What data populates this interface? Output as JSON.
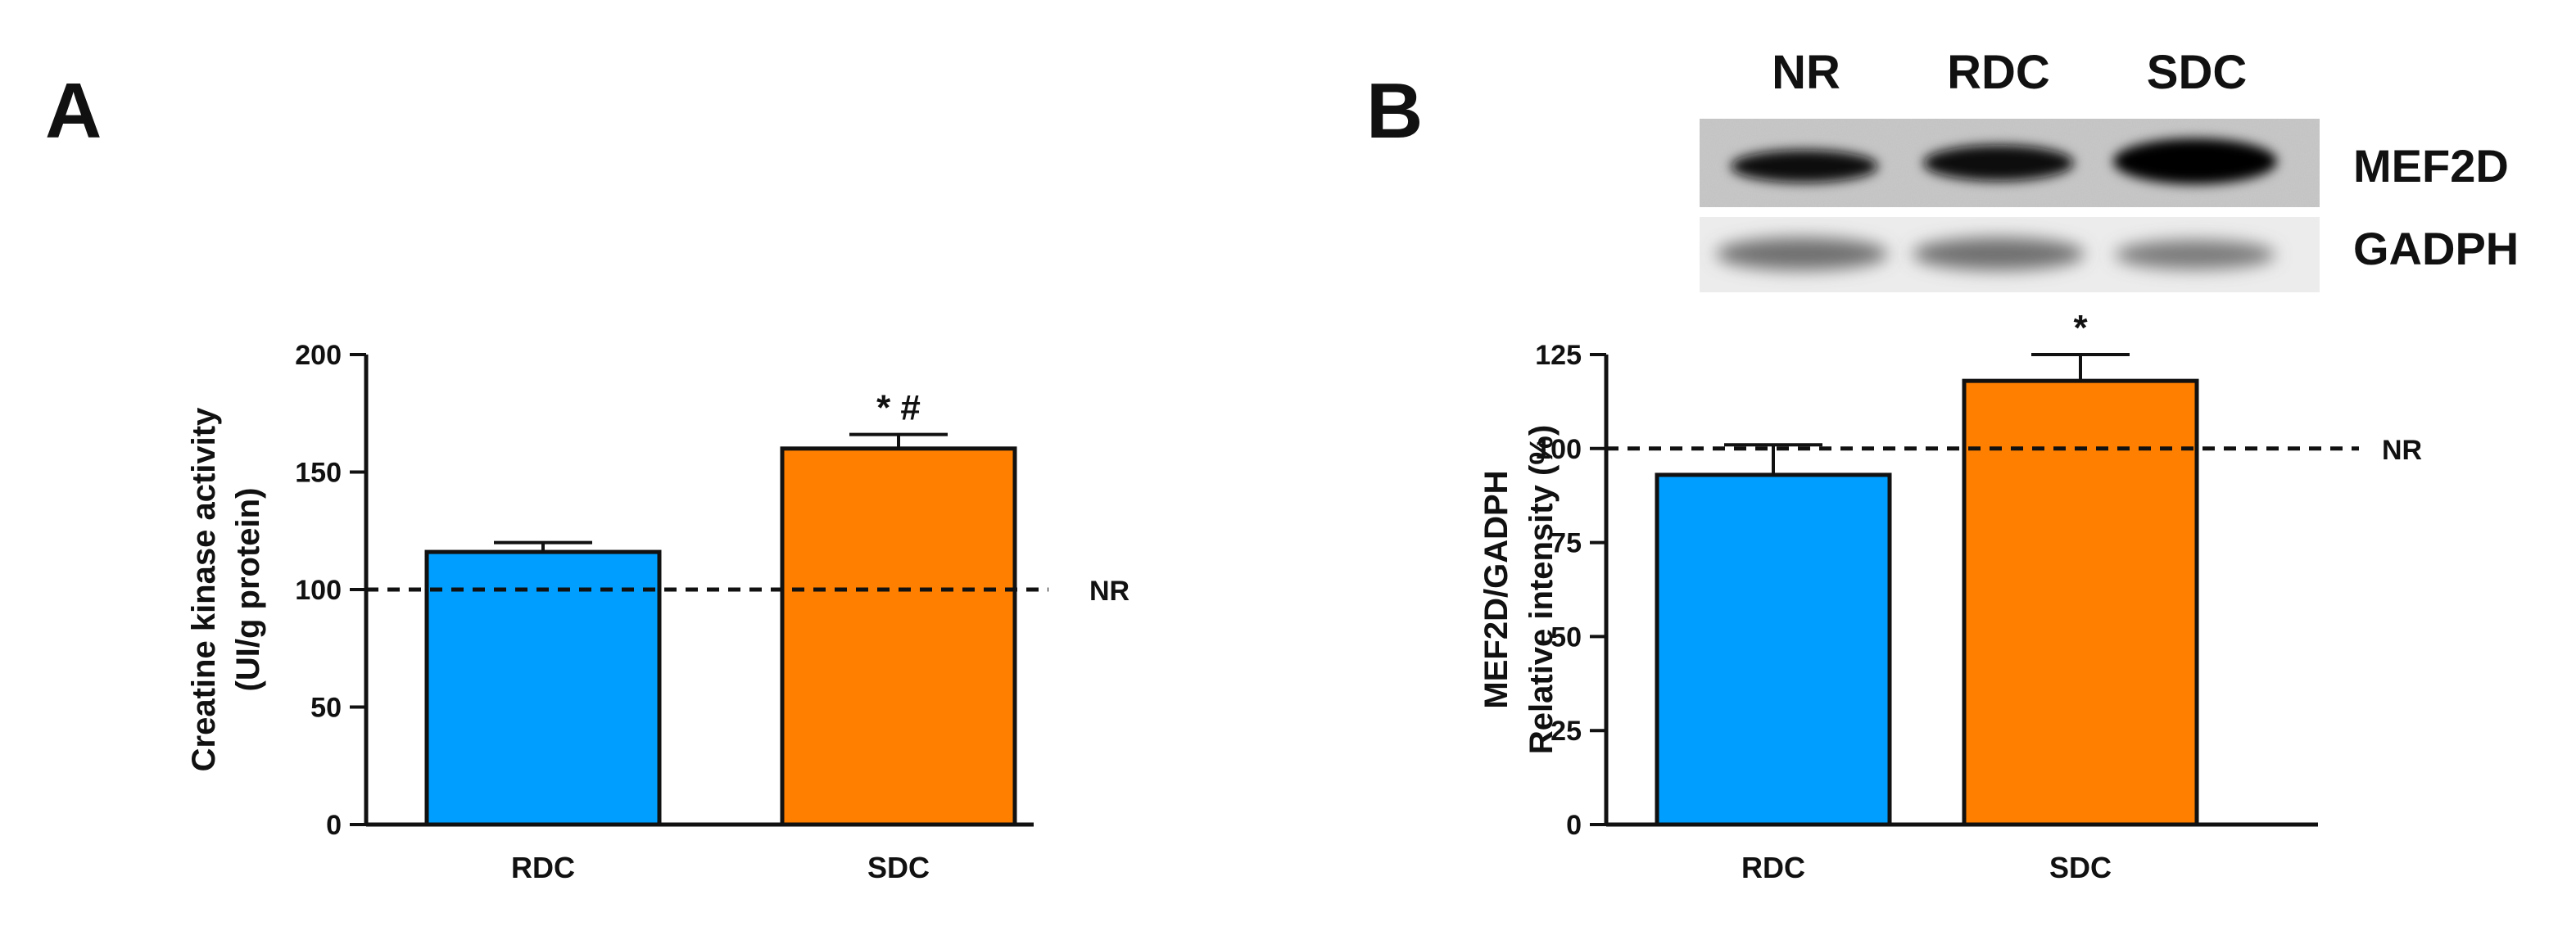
{
  "colors": {
    "RDC": "#009FFF",
    "SDC": "#FF8000",
    "axis": "#111111"
  },
  "chart_data": [
    {
      "panel": "A",
      "type": "bar",
      "categories": [
        "RDC",
        "SDC"
      ],
      "values": [
        116,
        160
      ],
      "errors": [
        4,
        6
      ],
      "annotations": [
        "",
        "* #"
      ],
      "ylabel": [
        "Creatine kinase activity",
        "(UI/g protein)"
      ],
      "xlabel": "",
      "ylim": [
        0,
        200
      ],
      "yticks": [
        0,
        50,
        100,
        150,
        200
      ],
      "reference_line": {
        "value": 100,
        "label": "NR",
        "style": "dashed"
      }
    },
    {
      "panel": "B",
      "type": "bar",
      "categories": [
        "RDC",
        "SDC"
      ],
      "values": [
        93,
        118
      ],
      "errors": [
        8,
        7
      ],
      "annotations": [
        "",
        "*"
      ],
      "ylabel": [
        "MEF2D/GADPH",
        "Relative intensity (%)"
      ],
      "xlabel": "",
      "ylim": [
        0,
        125
      ],
      "yticks": [
        0,
        25,
        50,
        75,
        100,
        125
      ],
      "reference_line": {
        "value": 100,
        "label": "NR",
        "style": "dashed"
      }
    }
  ],
  "blot": {
    "lanes": [
      "NR",
      "RDC",
      "SDC"
    ],
    "rows": [
      "MEF2D",
      "GADPH"
    ]
  }
}
